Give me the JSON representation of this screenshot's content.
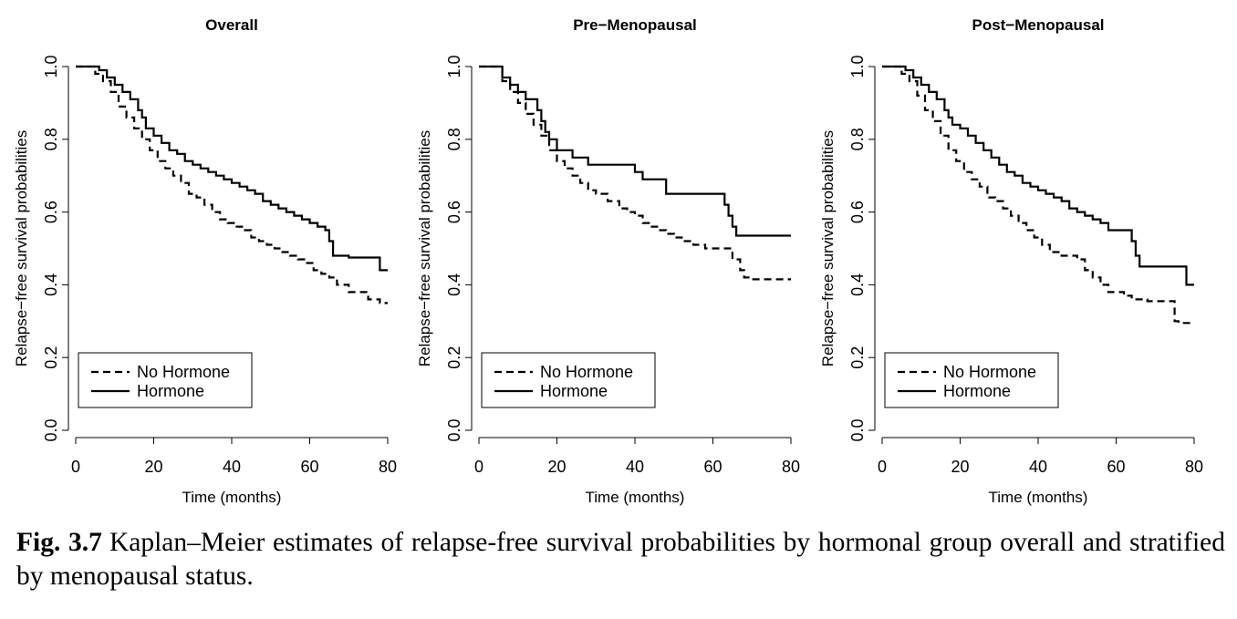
{
  "caption": {
    "label": "Fig. 3.7",
    "text": "Kaplan–Meier estimates of relapse-free survival probabilities by hormonal group overall and stratified by menopausal status."
  },
  "chart_data": [
    {
      "type": "line",
      "step": true,
      "title": "Overall",
      "xlabel": "Time (months)",
      "ylabel": "Relapse−free survival probabilities",
      "xlim": [
        0,
        80
      ],
      "ylim": [
        0,
        1
      ],
      "xticks": [
        0,
        20,
        40,
        60,
        80
      ],
      "yticks": [
        0.0,
        0.2,
        0.4,
        0.6,
        0.8,
        1.0
      ],
      "grid": false,
      "legend_position": "bottom-left",
      "series": [
        {
          "name": "No Hormone",
          "style": "dashed",
          "x": [
            0,
            5,
            7,
            9,
            11,
            13,
            15,
            17,
            19,
            21,
            23,
            25,
            27,
            29,
            31,
            33,
            35,
            37,
            39,
            41,
            43,
            45,
            47,
            49,
            51,
            53,
            55,
            57,
            59,
            61,
            63,
            65,
            67,
            70,
            75,
            78,
            80
          ],
          "y": [
            1.0,
            0.98,
            0.96,
            0.93,
            0.89,
            0.86,
            0.83,
            0.8,
            0.77,
            0.74,
            0.72,
            0.7,
            0.68,
            0.65,
            0.64,
            0.62,
            0.6,
            0.58,
            0.57,
            0.56,
            0.55,
            0.53,
            0.52,
            0.51,
            0.5,
            0.49,
            0.48,
            0.47,
            0.46,
            0.44,
            0.43,
            0.42,
            0.4,
            0.38,
            0.36,
            0.35,
            0.35
          ]
        },
        {
          "name": "Hormone",
          "style": "solid",
          "x": [
            0,
            6,
            8,
            10,
            12,
            14,
            16,
            17,
            18,
            20,
            22,
            24,
            26,
            28,
            30,
            32,
            34,
            36,
            38,
            40,
            42,
            44,
            46,
            48,
            50,
            52,
            54,
            56,
            58,
            60,
            62,
            64,
            65,
            66,
            70,
            75,
            78,
            80
          ],
          "y": [
            1.0,
            0.99,
            0.97,
            0.95,
            0.93,
            0.91,
            0.88,
            0.86,
            0.83,
            0.81,
            0.79,
            0.77,
            0.76,
            0.74,
            0.73,
            0.72,
            0.71,
            0.7,
            0.69,
            0.68,
            0.67,
            0.66,
            0.65,
            0.63,
            0.62,
            0.61,
            0.6,
            0.59,
            0.58,
            0.57,
            0.56,
            0.55,
            0.52,
            0.48,
            0.475,
            0.475,
            0.44,
            0.44
          ]
        }
      ]
    },
    {
      "type": "line",
      "step": true,
      "title": "Pre−Menopausal",
      "xlabel": "Time (months)",
      "ylabel": "Relapse−free survival probabilities",
      "xlim": [
        0,
        80
      ],
      "ylim": [
        0,
        1
      ],
      "xticks": [
        0,
        20,
        40,
        60,
        80
      ],
      "yticks": [
        0.0,
        0.2,
        0.4,
        0.6,
        0.8,
        1.0
      ],
      "grid": false,
      "legend_position": "bottom-left",
      "series": [
        {
          "name": "No Hormone",
          "style": "dashed",
          "x": [
            0,
            6,
            8,
            10,
            12,
            14,
            16,
            18,
            20,
            22,
            24,
            26,
            28,
            30,
            33,
            36,
            38,
            40,
            42,
            44,
            46,
            48,
            50,
            52,
            55,
            58,
            62,
            65,
            67,
            68,
            70,
            80
          ],
          "y": [
            1.0,
            0.96,
            0.93,
            0.9,
            0.87,
            0.84,
            0.81,
            0.77,
            0.74,
            0.72,
            0.7,
            0.68,
            0.66,
            0.65,
            0.63,
            0.61,
            0.6,
            0.59,
            0.57,
            0.56,
            0.55,
            0.54,
            0.53,
            0.52,
            0.51,
            0.5,
            0.5,
            0.47,
            0.44,
            0.42,
            0.415,
            0.415
          ]
        },
        {
          "name": "Hormone",
          "style": "solid",
          "x": [
            0,
            6,
            8,
            10,
            12,
            14,
            15,
            16,
            17,
            18,
            20,
            24,
            28,
            40,
            42,
            48,
            62,
            63,
            64,
            65,
            66,
            80
          ],
          "y": [
            1.0,
            0.97,
            0.95,
            0.93,
            0.91,
            0.91,
            0.88,
            0.85,
            0.82,
            0.8,
            0.77,
            0.75,
            0.73,
            0.71,
            0.69,
            0.65,
            0.65,
            0.62,
            0.59,
            0.56,
            0.535,
            0.535
          ]
        }
      ]
    },
    {
      "type": "line",
      "step": true,
      "title": "Post−Menopausal",
      "xlabel": "Time (months)",
      "ylabel": "Relapse−free survival probabilities",
      "xlim": [
        0,
        80
      ],
      "ylim": [
        0,
        1
      ],
      "xticks": [
        0,
        20,
        40,
        60,
        80
      ],
      "yticks": [
        0.0,
        0.2,
        0.4,
        0.6,
        0.8,
        1.0
      ],
      "grid": false,
      "legend_position": "bottom-left",
      "series": [
        {
          "name": "No Hormone",
          "style": "dashed",
          "x": [
            0,
            5,
            7,
            9,
            11,
            13,
            15,
            17,
            19,
            21,
            23,
            25,
            27,
            29,
            31,
            33,
            35,
            37,
            39,
            41,
            43,
            46,
            50,
            52,
            54,
            56,
            58,
            62,
            64,
            68,
            70,
            75,
            76,
            80
          ],
          "y": [
            1.0,
            0.98,
            0.96,
            0.92,
            0.88,
            0.85,
            0.81,
            0.77,
            0.74,
            0.71,
            0.69,
            0.67,
            0.64,
            0.63,
            0.61,
            0.59,
            0.57,
            0.55,
            0.53,
            0.51,
            0.49,
            0.48,
            0.47,
            0.44,
            0.42,
            0.4,
            0.38,
            0.37,
            0.36,
            0.355,
            0.355,
            0.3,
            0.295,
            0.295
          ]
        },
        {
          "name": "Hormone",
          "style": "solid",
          "x": [
            0,
            6,
            8,
            10,
            12,
            14,
            16,
            17,
            18,
            20,
            22,
            24,
            26,
            28,
            30,
            32,
            34,
            36,
            38,
            40,
            42,
            44,
            46,
            48,
            50,
            52,
            54,
            56,
            58,
            62,
            64,
            65,
            66,
            72,
            78,
            80
          ],
          "y": [
            1.0,
            0.99,
            0.97,
            0.95,
            0.93,
            0.91,
            0.88,
            0.86,
            0.84,
            0.83,
            0.81,
            0.79,
            0.77,
            0.75,
            0.73,
            0.71,
            0.7,
            0.68,
            0.67,
            0.66,
            0.65,
            0.64,
            0.63,
            0.61,
            0.6,
            0.59,
            0.58,
            0.57,
            0.55,
            0.55,
            0.52,
            0.48,
            0.45,
            0.45,
            0.4,
            0.4
          ]
        }
      ]
    }
  ]
}
